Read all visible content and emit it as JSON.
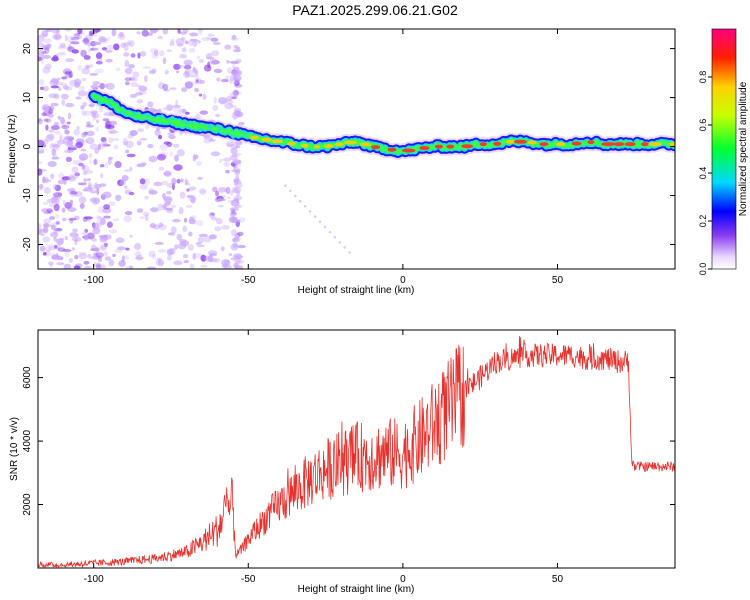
{
  "title": "PAZ1.2025.299.06.21.G02",
  "colors": {
    "snr_line": "#e8302c",
    "track_outer": "#1a1aff",
    "track_mid": "#22e0c0",
    "track_inner": "#ff2a2a",
    "noise": "#8a3cf0",
    "axis": "#000000"
  },
  "colorbar": {
    "label": "Normalized spectral amplitude",
    "ticks": [
      "0.0",
      "0.2",
      "0.4",
      "0.6",
      "0.8"
    ],
    "tick_values": [
      0.0,
      0.2,
      0.4,
      0.6,
      0.8
    ],
    "range": [
      0,
      1
    ]
  },
  "chart_data": [
    {
      "type": "heatmap",
      "name": "spectrogram",
      "xlabel": "Height of straight line (km)",
      "ylabel": "Frequency (Hz)",
      "xlim": [
        -118,
        88
      ],
      "ylim": [
        -25,
        24
      ],
      "xticks": [
        -100,
        -50,
        0,
        50
      ],
      "xtick_labels": [
        "-100",
        "-50",
        "0",
        "50"
      ],
      "yticks": [
        -20,
        -10,
        0,
        10,
        20
      ],
      "ytick_labels": [
        "-20",
        "-10",
        "0",
        "10",
        "20"
      ],
      "ridge": {
        "x": [
          -100,
          -95,
          -90,
          -85,
          -80,
          -75,
          -70,
          -65,
          -60,
          -55,
          -50,
          -45,
          -40,
          -35,
          -30,
          -25,
          -20,
          -15,
          -10,
          -5,
          0,
          5,
          10,
          15,
          20,
          25,
          30,
          35,
          40,
          45,
          50,
          55,
          60,
          65,
          70,
          75,
          80,
          85,
          88
        ],
        "freq": [
          10.5,
          9,
          7,
          6,
          5.5,
          5,
          4.5,
          4,
          3.5,
          3,
          2,
          1.5,
          1,
          0.5,
          0,
          0,
          0.5,
          1,
          0,
          -0.5,
          -1,
          -0.5,
          0,
          0,
          0,
          0.5,
          0.5,
          1,
          1,
          0.5,
          0.5,
          0.5,
          1,
          0.5,
          0.5,
          0.5,
          0.5,
          0.5,
          0.5
        ]
      }
    },
    {
      "type": "line",
      "name": "snr",
      "xlabel": "Height of straight line (km)",
      "ylabel": "SNR (10 * v/v)",
      "xlim": [
        -118,
        88
      ],
      "ylim": [
        0,
        7500
      ],
      "xticks": [
        -100,
        -50,
        0,
        50
      ],
      "xtick_labels": [
        "-100",
        "-50",
        "0",
        "50"
      ],
      "yticks": [
        2000,
        4000,
        6000
      ],
      "ytick_labels": [
        "2000",
        "4000",
        "6000"
      ],
      "series": [
        {
          "name": "SNR",
          "x": [
            -118,
            -110,
            -100,
            -90,
            -80,
            -70,
            -65,
            -60,
            -57,
            -55,
            -54,
            -52,
            -50,
            -45,
            -40,
            -35,
            -30,
            -25,
            -20,
            -15,
            -10,
            -5,
            0,
            5,
            10,
            15,
            20,
            25,
            30,
            35,
            40,
            45,
            50,
            55,
            60,
            65,
            70,
            73,
            74,
            75,
            80,
            85,
            88
          ],
          "y": [
            100,
            100,
            150,
            200,
            300,
            500,
            800,
            1200,
            1800,
            2000,
            400,
            600,
            900,
            1500,
            2000,
            2400,
            2800,
            3100,
            3300,
            3500,
            3500,
            3600,
            3600,
            4000,
            4500,
            5000,
            5600,
            6000,
            6500,
            6600,
            6700,
            6700,
            6700,
            6700,
            6600,
            6600,
            6500,
            6500,
            3300,
            3200,
            3200,
            3200,
            3200
          ]
        }
      ]
    }
  ]
}
